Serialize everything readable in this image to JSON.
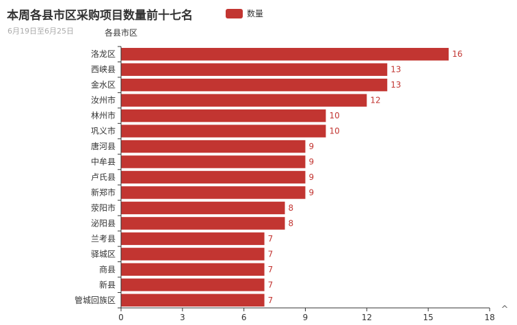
{
  "chart_data": {
    "type": "bar",
    "orientation": "horizontal",
    "title": "本周各县市区采购项目数量前十七名",
    "subtitle": "6月19日至6月25日",
    "ylabel": "各县市区",
    "xlabel": "",
    "legend": {
      "position": "top",
      "entries": [
        "数量"
      ]
    },
    "categories": [
      "洛龙区",
      "西峡县",
      "金水区",
      "汝州市",
      "林州市",
      "巩义市",
      "唐河县",
      "中牟县",
      "卢氏县",
      "新郑市",
      "荥阳市",
      "泌阳县",
      "兰考县",
      "驿城区",
      "商县",
      "新县",
      "管城回族区"
    ],
    "series": [
      {
        "name": "数量",
        "values": [
          16,
          13,
          13,
          12,
          10,
          10,
          9,
          9,
          9,
          9,
          8,
          8,
          7,
          7,
          7,
          7,
          7
        ]
      }
    ],
    "xlim": [
      0,
      18
    ],
    "xticks": [
      0,
      3,
      6,
      9,
      12,
      15,
      18
    ],
    "grid": false,
    "color": "#c23531"
  },
  "toolbox": {
    "icon": "chevron-up-icon",
    "glyph": "^"
  }
}
